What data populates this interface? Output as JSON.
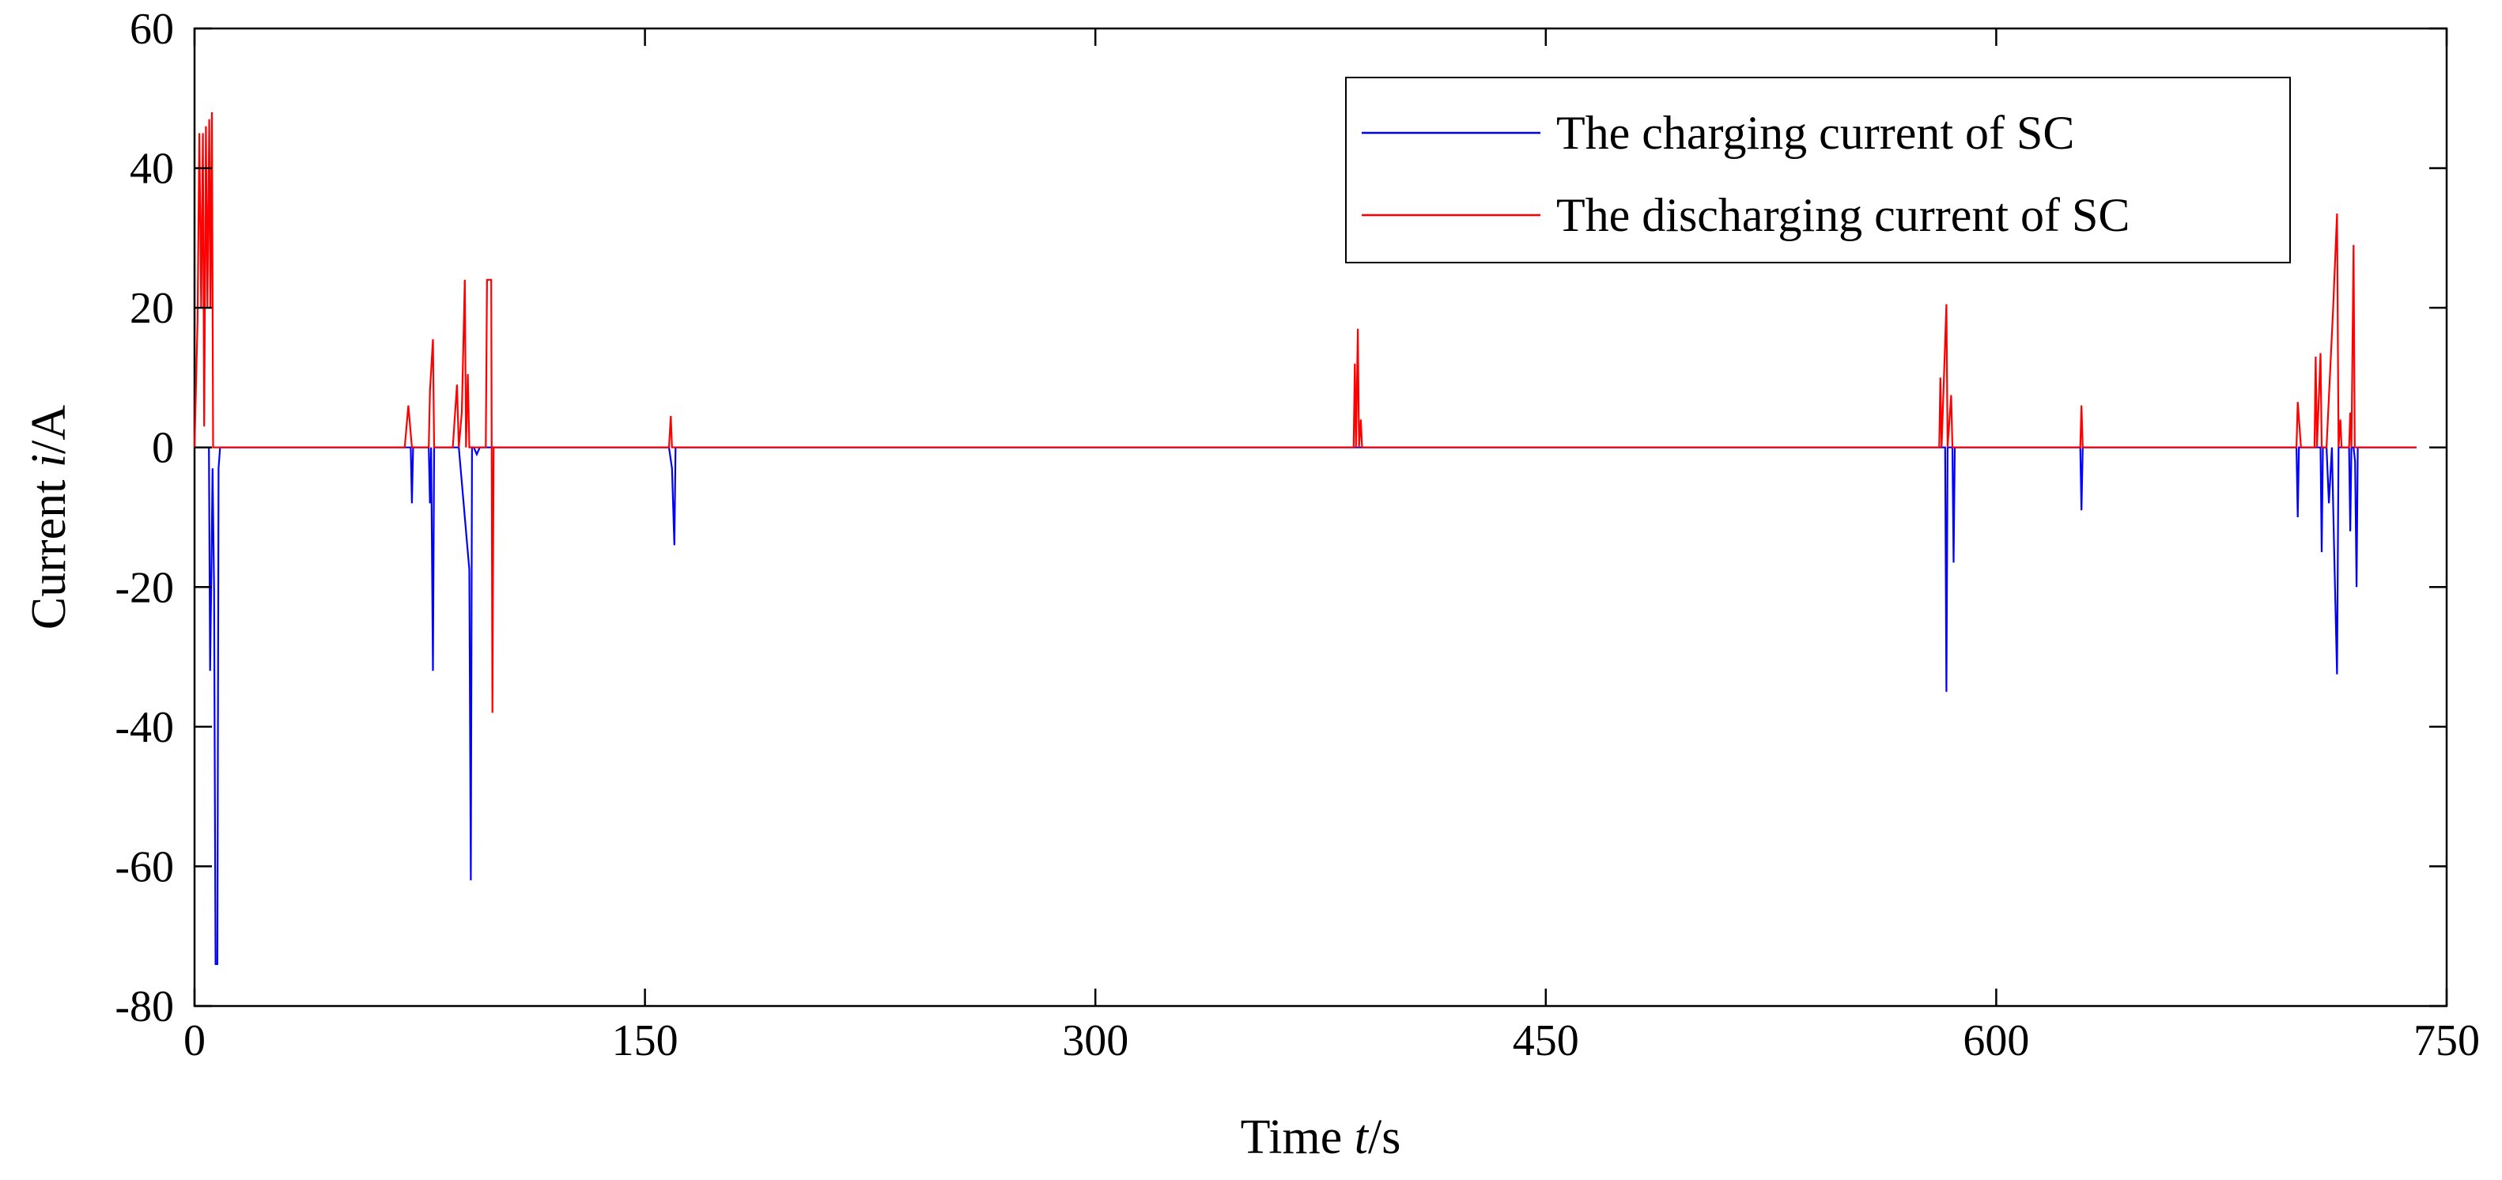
{
  "chart_data": {
    "type": "line",
    "xlabel_parts": [
      "Time ",
      "t",
      "/s"
    ],
    "ylabel_parts": [
      "Current ",
      "i",
      "/A"
    ],
    "xlim": [
      0,
      750
    ],
    "ylim": [
      -80,
      60
    ],
    "xticks": [
      "0",
      "150",
      "300",
      "450",
      "600",
      "750"
    ],
    "yticks": [
      "60",
      "40",
      "20",
      "0",
      "-20",
      "-40",
      "-60",
      "-80"
    ],
    "grid": false,
    "legend_position": "top-right",
    "series": [
      {
        "name": "The charging current of SC",
        "color": "#0000ff",
        "points": [
          [
            0,
            0
          ],
          [
            3,
            0
          ],
          [
            4.8,
            0
          ],
          [
            5.2,
            -32
          ],
          [
            5.6,
            -18
          ],
          [
            6,
            -3
          ],
          [
            6.5,
            -20
          ],
          [
            7,
            -74
          ],
          [
            7.6,
            -74
          ],
          [
            8,
            -3
          ],
          [
            8.5,
            0
          ],
          [
            72,
            0
          ],
          [
            72.4,
            -8
          ],
          [
            72.8,
            0
          ],
          [
            78,
            0
          ],
          [
            78.4,
            -8
          ],
          [
            78.8,
            0
          ],
          [
            79.4,
            -32
          ],
          [
            79.8,
            0
          ],
          [
            88,
            0
          ],
          [
            90,
            -10
          ],
          [
            91.5,
            -17.5
          ],
          [
            92,
            -62
          ],
          [
            92.4,
            0
          ],
          [
            93,
            0
          ],
          [
            94,
            -1
          ],
          [
            95,
            0
          ],
          [
            158,
            0
          ],
          [
            159,
            -3
          ],
          [
            159.8,
            -14
          ],
          [
            160.2,
            0
          ],
          [
            583,
            0
          ],
          [
            583.4,
            -35
          ],
          [
            583.8,
            0
          ],
          [
            585.4,
            0
          ],
          [
            585.8,
            -16.5
          ],
          [
            586.2,
            0
          ],
          [
            628,
            0
          ],
          [
            628.4,
            -9
          ],
          [
            628.8,
            0
          ],
          [
            700,
            0
          ],
          [
            700.4,
            -10
          ],
          [
            700.8,
            0
          ],
          [
            708,
            0
          ],
          [
            708.4,
            -15
          ],
          [
            708.8,
            0
          ],
          [
            710,
            0
          ],
          [
            710.8,
            -8
          ],
          [
            711.8,
            0
          ],
          [
            712.6,
            -16
          ],
          [
            713.5,
            -32.5
          ],
          [
            714,
            0
          ],
          [
            717.5,
            0
          ],
          [
            717.9,
            -12
          ],
          [
            718.3,
            0
          ],
          [
            719,
            0
          ],
          [
            719.5,
            -2
          ],
          [
            720,
            -20
          ],
          [
            720.4,
            0
          ],
          [
            740,
            0
          ]
        ]
      },
      {
        "name": "The discharging current of SC",
        "color": "#ff0000",
        "points": [
          [
            0,
            0
          ],
          [
            1,
            18
          ],
          [
            1.6,
            45
          ],
          [
            2.2,
            20
          ],
          [
            2.8,
            45
          ],
          [
            3.2,
            3
          ],
          [
            3.8,
            46
          ],
          [
            4.3,
            20
          ],
          [
            4.9,
            47
          ],
          [
            5.3,
            20
          ],
          [
            5.8,
            48
          ],
          [
            6.2,
            0
          ],
          [
            70,
            0
          ],
          [
            71.2,
            6
          ],
          [
            72.4,
            0
          ],
          [
            78,
            0
          ],
          [
            78.4,
            8
          ],
          [
            79.4,
            15.5
          ],
          [
            79.8,
            0
          ],
          [
            86,
            0
          ],
          [
            87.4,
            9
          ],
          [
            88,
            0
          ],
          [
            89,
            5
          ],
          [
            90,
            24
          ],
          [
            90.4,
            0
          ],
          [
            91,
            10.5
          ],
          [
            91.5,
            0
          ],
          [
            97,
            0
          ],
          [
            97.4,
            24
          ],
          [
            98.8,
            24
          ],
          [
            99.2,
            -38
          ],
          [
            99.6,
            0
          ],
          [
            158,
            0
          ],
          [
            158.6,
            4.5
          ],
          [
            159,
            0
          ],
          [
            386,
            0
          ],
          [
            386.4,
            12
          ],
          [
            386.8,
            0
          ],
          [
            387.4,
            17
          ],
          [
            387.8,
            0
          ],
          [
            388.4,
            4
          ],
          [
            388.8,
            0
          ],
          [
            581,
            0
          ],
          [
            581.4,
            10
          ],
          [
            581.8,
            0
          ],
          [
            583.4,
            20.5
          ],
          [
            583.8,
            0
          ],
          [
            585,
            7.5
          ],
          [
            585.4,
            0
          ],
          [
            628,
            0
          ],
          [
            628.4,
            6
          ],
          [
            628.8,
            0
          ],
          [
            700,
            0
          ],
          [
            700.4,
            6.5
          ],
          [
            701.5,
            0
          ],
          [
            706,
            0
          ],
          [
            706.4,
            13
          ],
          [
            706.8,
            0
          ],
          [
            708,
            13.5
          ],
          [
            708.4,
            0
          ],
          [
            710,
            0
          ],
          [
            712.2,
            20
          ],
          [
            713.5,
            33.5
          ],
          [
            714,
            0
          ],
          [
            714.6,
            4
          ],
          [
            715,
            0
          ],
          [
            717.5,
            0
          ],
          [
            717.9,
            5
          ],
          [
            718.3,
            0
          ],
          [
            719,
            29
          ],
          [
            719.4,
            0
          ],
          [
            740,
            0
          ]
        ]
      }
    ]
  }
}
